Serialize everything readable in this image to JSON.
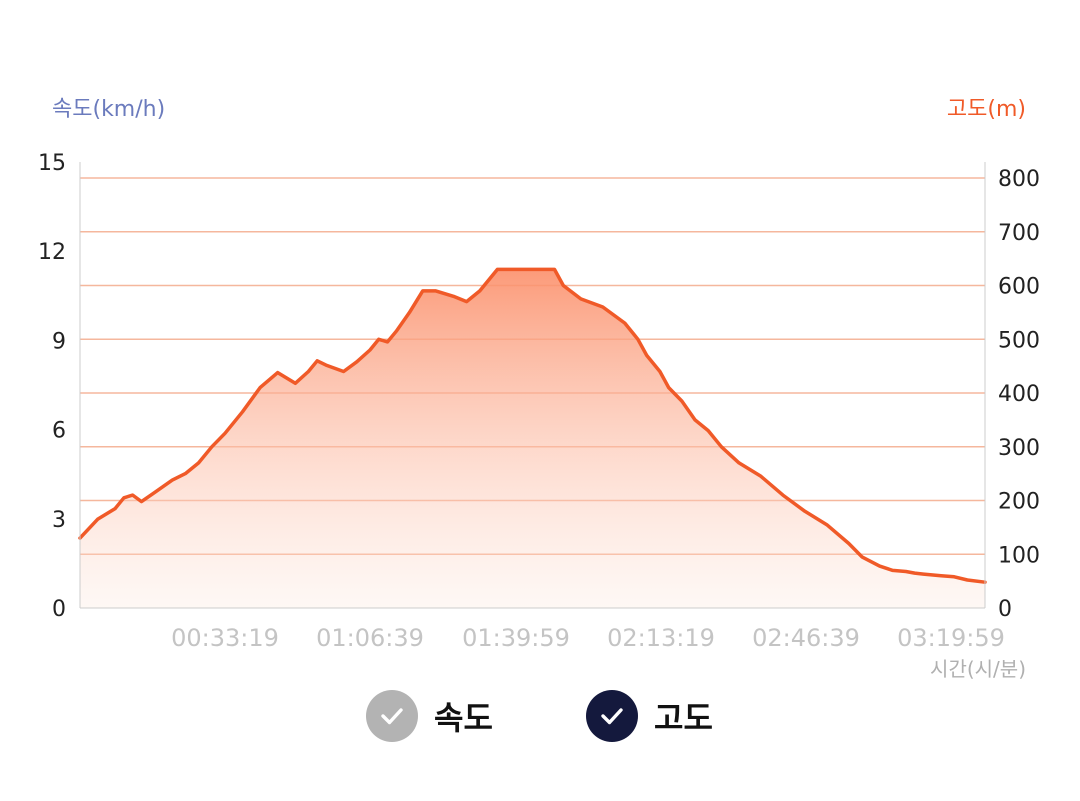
{
  "colors": {
    "elevation": "#f05a28",
    "speed_axis": "#6b7bbd",
    "grid": "#f5b79d",
    "legend_speed_inactive": "#b3b3b3",
    "legend_elevation_active": "#14193d"
  },
  "legend": {
    "speed": {
      "label": "속도",
      "active": false,
      "icon": "check-icon"
    },
    "elevation": {
      "label": "고도",
      "active": true,
      "icon": "check-icon"
    }
  },
  "chart_data": {
    "type": "area",
    "left_axis_label": "속도(km/h)",
    "right_axis_label": "고도(m)",
    "x_unit_label": "시간(시/분)",
    "left_ticks": [
      "0",
      "3",
      "6",
      "9",
      "12",
      "15"
    ],
    "left_ylim": [
      0,
      15
    ],
    "right_ticks": [
      "0",
      "100",
      "200",
      "300",
      "400",
      "500",
      "600",
      "700",
      "800"
    ],
    "right_ylim": [
      0,
      800
    ],
    "x_ticks": [
      "00:33:19",
      "01:06:39",
      "01:39:59",
      "02:13:19",
      "02:46:39",
      "03:19:59"
    ],
    "grid": true,
    "series": [
      {
        "key": "elevation",
        "axis": "right",
        "x_minutes": [
          0,
          4,
          8,
          10,
          12,
          14,
          17,
          21,
          24,
          27,
          30,
          33,
          37,
          41,
          45,
          49,
          52,
          54,
          56,
          60,
          63,
          66,
          68,
          70,
          72,
          75,
          78,
          81,
          85,
          88,
          91,
          95,
          98,
          100,
          102,
          105,
          108,
          110,
          114,
          119,
          124,
          127,
          129,
          132,
          134,
          137,
          140,
          143,
          146,
          150,
          155,
          160,
          165,
          170,
          175,
          178,
          182,
          185,
          188,
          190,
          192,
          196,
          199,
          202,
          206
        ],
        "elevation_m": [
          130,
          165,
          185,
          205,
          210,
          198,
          215,
          238,
          250,
          270,
          300,
          325,
          365,
          410,
          438,
          418,
          440,
          460,
          452,
          440,
          458,
          480,
          500,
          495,
          515,
          550,
          590,
          590,
          580,
          570,
          590,
          630,
          630,
          630,
          630,
          630,
          630,
          600,
          575,
          560,
          530,
          500,
          470,
          440,
          410,
          385,
          350,
          330,
          300,
          270,
          245,
          210,
          180,
          155,
          120,
          95,
          78,
          70,
          68,
          65,
          63,
          60,
          58,
          52,
          48
        ]
      }
    ]
  }
}
